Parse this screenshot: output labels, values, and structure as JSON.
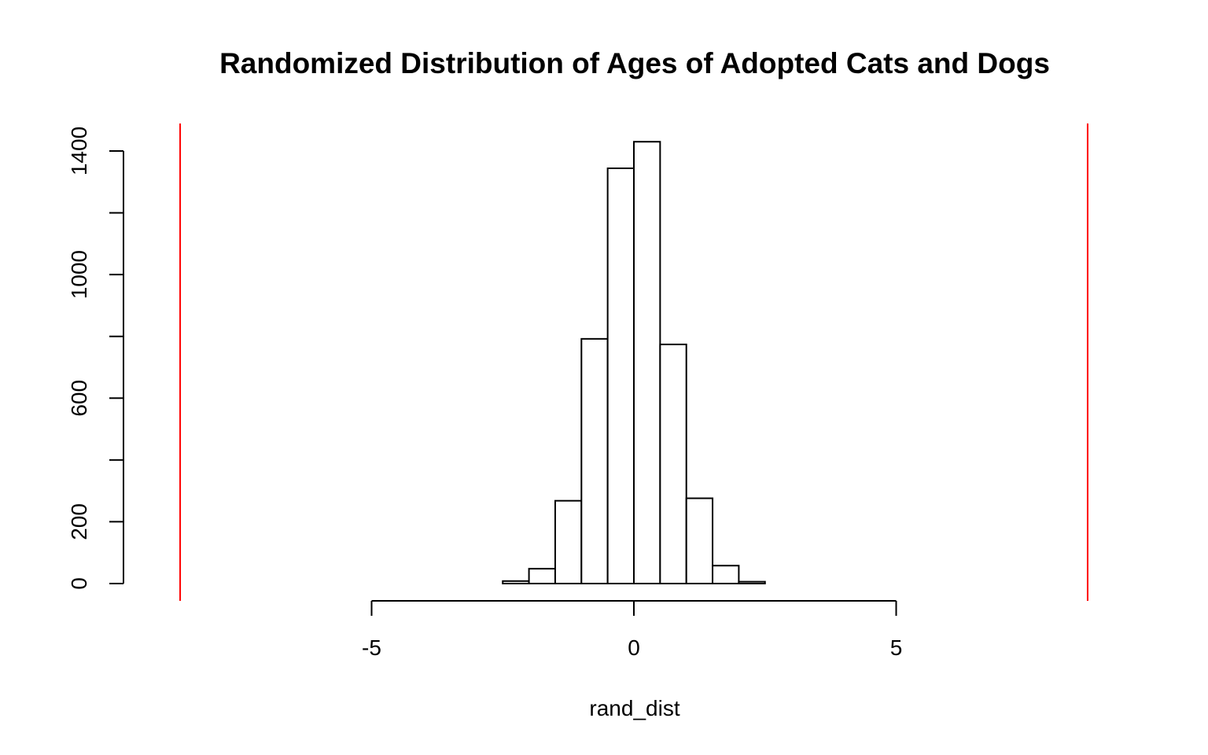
{
  "chart_data": {
    "type": "bar",
    "title": "Randomized Distribution of Ages of Adopted Cats and Dogs",
    "xlabel": "rand_dist",
    "ylabel": "",
    "xlim": [
      -8.65,
      8.65
    ],
    "ylim": [
      0,
      1475
    ],
    "x_ticks": [
      -5,
      0,
      5
    ],
    "y_ticks": [
      0,
      200,
      400,
      600,
      800,
      1000,
      1200,
      1400
    ],
    "y_tick_labels": [
      "0",
      "200",
      "",
      "600",
      "",
      "1000",
      "",
      "1400"
    ],
    "bins": [
      {
        "start": -2.5,
        "end": -2.0,
        "count": 8
      },
      {
        "start": -2.0,
        "end": -1.5,
        "count": 48
      },
      {
        "start": -1.5,
        "end": -1.0,
        "count": 268
      },
      {
        "start": -1.0,
        "end": -0.5,
        "count": 792
      },
      {
        "start": -0.5,
        "end": 0.0,
        "count": 1344
      },
      {
        "start": 0.0,
        "end": 0.5,
        "count": 1430
      },
      {
        "start": 0.5,
        "end": 1.0,
        "count": 774
      },
      {
        "start": 1.0,
        "end": 1.5,
        "count": 276
      },
      {
        "start": 1.5,
        "end": 2.0,
        "count": 58
      },
      {
        "start": 2.0,
        "end": 2.5,
        "count": 6
      }
    ],
    "reference_lines": [
      {
        "x": -8.65,
        "color": "#ff0000"
      },
      {
        "x": 8.65,
        "color": "#ff0000"
      }
    ],
    "bar_fill": "#ffffff",
    "bar_stroke": "#000000",
    "grid": false,
    "legend": "none"
  }
}
